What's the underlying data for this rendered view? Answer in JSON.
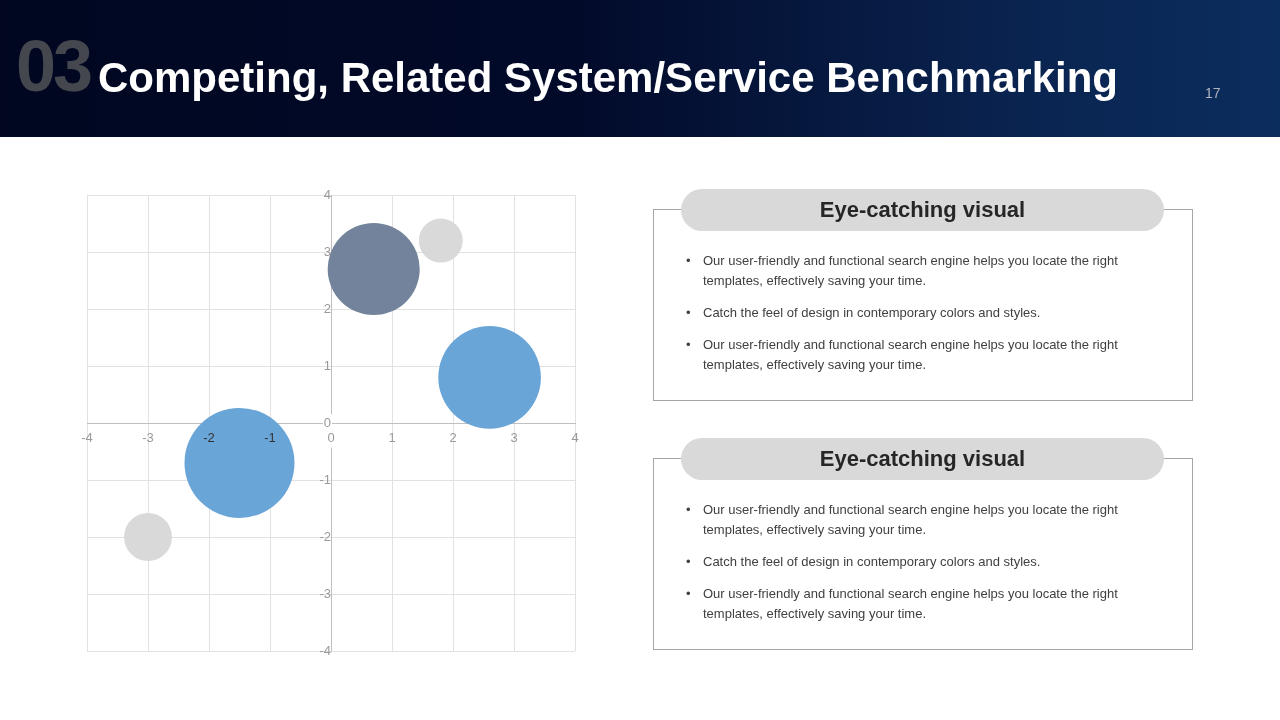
{
  "chart_data": [
    {
      "type": "bubble",
      "title": "Competing, Related System/Service Benchmarking",
      "annotations": [
        "03",
        "17"
      ],
      "x": [
        -3,
        -1.5,
        0.7,
        1.8,
        2.6
      ],
      "values": [
        -2,
        -0.7,
        2.7,
        3.2,
        0.8
      ],
      "sizes": [
        0.19,
        1,
        0.7,
        0.16,
        0.87
      ],
      "colors": [
        "#d9d9d9",
        "#6aa5d7",
        "#72839b",
        "#d9d9d9",
        "#6aa5d7"
      ],
      "xlim": [
        -4,
        4
      ],
      "ylim": [
        -4,
        4
      ],
      "xticks": [
        -4,
        -3,
        -2,
        -1,
        0,
        1,
        2,
        3,
        4
      ],
      "yticks": [
        -4,
        -3,
        -2,
        -1,
        0,
        1,
        2,
        3,
        4
      ],
      "grid": true
    },
    {
      "type": "other",
      "title": "Eye-catching visual",
      "annotations": [
        "• Our user-friendly and functional search engine helps you locate the right templates, effectively saving your time.",
        "• Catch the feel of design in contemporary colors and styles.",
        "• Our user-friendly and functional search engine helps you locate the right templates, effectively saving your time."
      ]
    },
    {
      "type": "other",
      "title": "Eye-catching visual",
      "annotations": [
        "• Our user-friendly and functional search engine helps you locate the right templates, effectively saving your time.",
        "• Catch the feel of design in contemporary colors and styles.",
        "• Our user-friendly and functional search engine helps you locate the right templates, effectively saving your time."
      ]
    }
  ]
}
